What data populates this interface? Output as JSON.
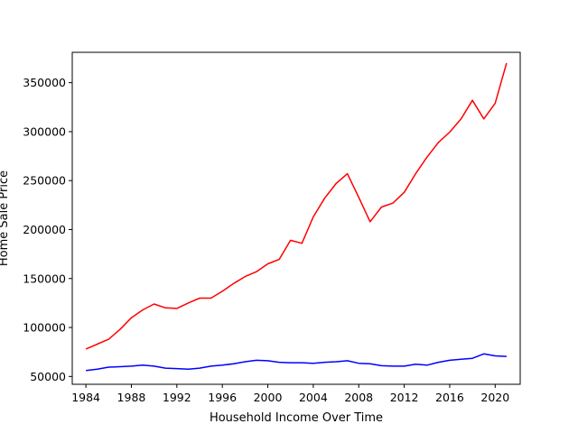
{
  "chart_data": {
    "type": "line",
    "title": "",
    "xlabel": "Household Income Over Time",
    "ylabel": "Home Sale Price",
    "xlim": [
      1982.8,
      2022.2
    ],
    "ylim": [
      42000,
      381000
    ],
    "xticks": [
      1984,
      1988,
      1992,
      1996,
      2000,
      2004,
      2008,
      2012,
      2016,
      2020
    ],
    "yticks": [
      50000,
      100000,
      150000,
      200000,
      250000,
      300000,
      350000
    ],
    "grid": false,
    "x": [
      1984,
      1985,
      1986,
      1987,
      1988,
      1989,
      1990,
      1991,
      1992,
      1993,
      1994,
      1995,
      1996,
      1997,
      1998,
      1999,
      2000,
      2001,
      2002,
      2003,
      2004,
      2005,
      2006,
      2007,
      2008,
      2009,
      2010,
      2011,
      2012,
      2013,
      2014,
      2015,
      2016,
      2017,
      2018,
      2019,
      2020,
      2021
    ],
    "series": [
      {
        "color": "#ff0000",
        "values": [
          78000,
          83000,
          88000,
          98000,
          110000,
          118000,
          124000,
          120000,
          119500,
          125000,
          130000,
          130000,
          137000,
          145000,
          152000,
          157000,
          165000,
          169500,
          189000,
          186000,
          213000,
          232000,
          247000,
          257000,
          233000,
          208000,
          223000,
          227000,
          238000,
          257000,
          274000,
          289000,
          299500,
          313000,
          332000,
          313000,
          329000,
          370000
        ]
      },
      {
        "color": "#0000ff",
        "values": [
          56000,
          57500,
          59500,
          60000,
          60500,
          61500,
          60500,
          58500,
          58000,
          57500,
          58500,
          60500,
          61500,
          63000,
          65000,
          66500,
          66000,
          64500,
          64000,
          64000,
          63500,
          64500,
          65000,
          66000,
          63500,
          63000,
          61000,
          60500,
          60500,
          62500,
          61500,
          64500,
          66500,
          67500,
          68500,
          73000,
          71000,
          70500
        ]
      }
    ]
  }
}
